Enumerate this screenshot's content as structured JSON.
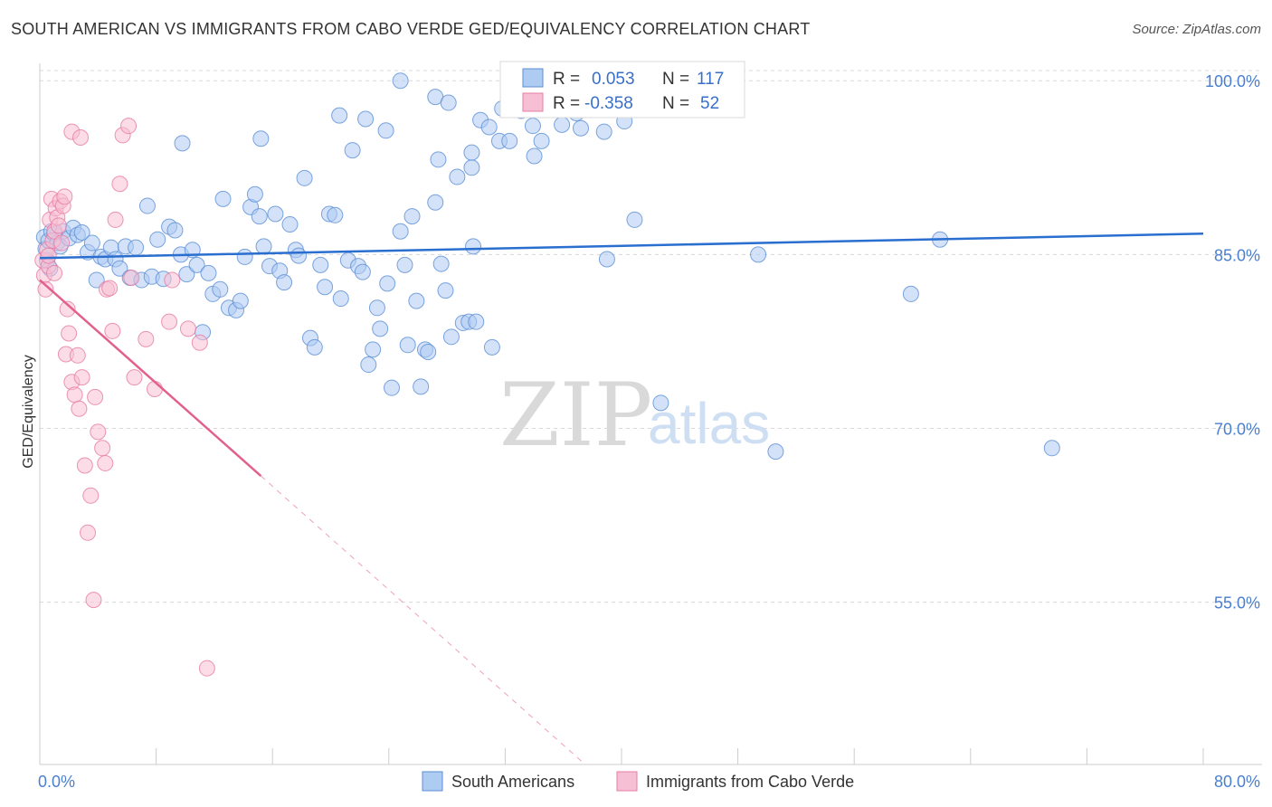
{
  "title": "SOUTH AMERICAN VS IMMIGRANTS FROM CABO VERDE GED/EQUIVALENCY CORRELATION CHART",
  "source": "Source: ZipAtlas.com",
  "colors": {
    "blue_fill": "#aecbf2",
    "blue_stroke": "#5b8fd6",
    "blue_line": "#2a6fd0",
    "pink_fill": "#f7bfd3",
    "pink_stroke": "#e77ca3",
    "pink_line": "#e2608e",
    "grid": "#d8d8d8",
    "tick_text": "#4a7fd0"
  },
  "stats_box": {
    "rows": [
      {
        "r_label": "R =",
        "r_value": "0.053",
        "n_label": "N =",
        "n_value": "117"
      },
      {
        "r_label": "R =",
        "r_value": "-0.358",
        "n_label": "N =",
        "n_value": "52"
      }
    ]
  },
  "legend": {
    "items": [
      "South Americans",
      "Immigrants from Cabo Verde"
    ]
  },
  "watermark": {
    "zip": "ZIP",
    "atlas": "atlas"
  },
  "chart_data": {
    "type": "scatter",
    "title": "SOUTH AMERICAN VS IMMIGRANTS FROM CABO VERDE GED/EQUIVALENCY CORRELATION CHART",
    "xlabel": "",
    "ylabel": "GED/Equivalency",
    "xlim": [
      0,
      80
    ],
    "ylim": [
      41,
      101.5
    ],
    "x_tick_labels": [
      "0.0%",
      "80.0%"
    ],
    "y_ticks": [
      {
        "value": 100,
        "label": "100.0%"
      },
      {
        "value": 85,
        "label": "85.0%"
      },
      {
        "value": 70,
        "label": "70.0%"
      },
      {
        "value": 55,
        "label": "55.0%"
      }
    ],
    "grid": "horizontal dashed",
    "legend_position": "bottom-center",
    "series": [
      {
        "name": "South Americans",
        "color": "#aecbf2",
        "trend": {
          "x0": 0,
          "y0": 84.7,
          "x1": 80,
          "y1": 86.8
        },
        "points": [
          [
            0.3,
            86.5
          ],
          [
            0.4,
            85.5
          ],
          [
            0.5,
            84.5
          ],
          [
            0.6,
            86.2
          ],
          [
            0.7,
            83.8
          ],
          [
            0.8,
            87.0
          ],
          [
            1.0,
            86.8
          ],
          [
            1.2,
            86.0
          ],
          [
            1.4,
            85.7
          ],
          [
            1.6,
            87.0
          ],
          [
            2.0,
            86.4
          ],
          [
            2.3,
            87.3
          ],
          [
            2.6,
            86.7
          ],
          [
            2.9,
            86.9
          ],
          [
            3.3,
            85.2
          ],
          [
            3.6,
            86.0
          ],
          [
            3.9,
            82.8
          ],
          [
            4.2,
            84.8
          ],
          [
            4.5,
            84.6
          ],
          [
            4.9,
            85.6
          ],
          [
            5.2,
            84.6
          ],
          [
            5.5,
            83.8
          ],
          [
            5.9,
            85.7
          ],
          [
            6.2,
            83.0
          ],
          [
            6.6,
            85.6
          ],
          [
            7.0,
            82.8
          ],
          [
            7.4,
            89.2
          ],
          [
            7.7,
            83.1
          ],
          [
            8.1,
            86.3
          ],
          [
            8.5,
            82.9
          ],
          [
            8.9,
            87.4
          ],
          [
            9.3,
            87.1
          ],
          [
            9.7,
            85.0
          ],
          [
            10.1,
            83.3
          ],
          [
            10.5,
            85.4
          ],
          [
            10.8,
            84.1
          ],
          [
            11.2,
            78.3
          ],
          [
            11.6,
            83.4
          ],
          [
            11.9,
            81.6
          ],
          [
            12.4,
            82.0
          ],
          [
            12.6,
            89.8
          ],
          [
            13.0,
            80.4
          ],
          [
            13.5,
            80.2
          ],
          [
            13.8,
            81.0
          ],
          [
            14.1,
            84.8
          ],
          [
            14.5,
            89.1
          ],
          [
            14.8,
            90.2
          ],
          [
            15.1,
            88.3
          ],
          [
            15.4,
            85.7
          ],
          [
            15.8,
            84.0
          ],
          [
            16.2,
            88.5
          ],
          [
            16.5,
            83.6
          ],
          [
            16.8,
            82.6
          ],
          [
            17.2,
            87.6
          ],
          [
            17.6,
            85.4
          ],
          [
            17.8,
            84.9
          ],
          [
            18.2,
            91.6
          ],
          [
            18.6,
            77.8
          ],
          [
            18.9,
            77.0
          ],
          [
            19.3,
            84.1
          ],
          [
            19.6,
            82.2
          ],
          [
            19.9,
            88.5
          ],
          [
            20.3,
            88.4
          ],
          [
            20.7,
            81.2
          ],
          [
            21.2,
            84.5
          ],
          [
            21.5,
            94.0
          ],
          [
            21.9,
            84.0
          ],
          [
            22.2,
            83.5
          ],
          [
            22.6,
            75.5
          ],
          [
            22.9,
            76.8
          ],
          [
            23.2,
            80.4
          ],
          [
            23.4,
            78.6
          ],
          [
            23.9,
            82.5
          ],
          [
            24.2,
            73.5
          ],
          [
            24.8,
            87.0
          ],
          [
            25.1,
            84.1
          ],
          [
            25.3,
            77.2
          ],
          [
            25.6,
            88.3
          ],
          [
            25.9,
            81.0
          ],
          [
            26.2,
            73.6
          ],
          [
            26.5,
            76.8
          ],
          [
            26.7,
            76.6
          ],
          [
            27.2,
            89.5
          ],
          [
            27.4,
            93.2
          ],
          [
            27.6,
            84.2
          ],
          [
            27.9,
            81.9
          ],
          [
            28.3,
            77.9
          ],
          [
            28.7,
            91.7
          ],
          [
            29.1,
            79.1
          ],
          [
            29.5,
            79.2
          ],
          [
            29.7,
            92.5
          ],
          [
            29.7,
            93.8
          ],
          [
            29.8,
            85.7
          ],
          [
            30.0,
            79.2
          ],
          [
            30.3,
            96.6
          ],
          [
            30.9,
            96.0
          ],
          [
            31.1,
            77.0
          ],
          [
            31.6,
            94.8
          ],
          [
            32.3,
            94.8
          ],
          [
            33.1,
            97.4
          ],
          [
            33.9,
            96.1
          ],
          [
            34.0,
            93.5
          ],
          [
            34.5,
            94.8
          ],
          [
            35.1,
            98.2
          ],
          [
            35.9,
            96.2
          ],
          [
            37.2,
            95.9
          ],
          [
            38.8,
            95.6
          ],
          [
            39.0,
            84.6
          ],
          [
            40.2,
            96.5
          ],
          [
            40.9,
            88.0
          ],
          [
            42.7,
            72.2
          ],
          [
            49.4,
            85.0
          ],
          [
            50.6,
            68.0
          ],
          [
            59.9,
            81.6
          ],
          [
            61.9,
            86.3
          ],
          [
            69.6,
            68.3
          ],
          [
            24.8,
            100.0
          ],
          [
            27.2,
            98.6
          ],
          [
            28.1,
            98.1
          ],
          [
            31.8,
            97.6
          ],
          [
            36.9,
            97.2
          ],
          [
            38.2,
            97.9
          ],
          [
            20.6,
            97.0
          ],
          [
            22.4,
            96.7
          ],
          [
            23.8,
            95.7
          ],
          [
            15.2,
            95.0
          ],
          [
            9.8,
            94.6
          ]
        ]
      },
      {
        "name": "Immigrants from Cabo Verde",
        "color": "#f7bfd3",
        "trend": {
          "x0": 0,
          "y0": 82.8,
          "x1": 15.2,
          "y1": 65.9
        },
        "trend_dashed": {
          "x0": 15.2,
          "y0": 65.9,
          "x1": 37.5,
          "y1": 41.0
        },
        "points": [
          [
            0.2,
            84.5
          ],
          [
            0.3,
            83.2
          ],
          [
            0.4,
            82.0
          ],
          [
            0.5,
            85.4
          ],
          [
            0.6,
            84.0
          ],
          [
            0.7,
            88.0
          ],
          [
            0.8,
            89.8
          ],
          [
            0.9,
            86.2
          ],
          [
            1.0,
            87.0
          ],
          [
            1.1,
            89.0
          ],
          [
            1.2,
            88.2
          ],
          [
            1.3,
            87.5
          ],
          [
            1.4,
            89.6
          ],
          [
            1.5,
            86.0
          ],
          [
            1.6,
            89.2
          ],
          [
            1.7,
            90.0
          ],
          [
            1.8,
            76.4
          ],
          [
            1.9,
            80.3
          ],
          [
            2.0,
            78.2
          ],
          [
            2.2,
            74.0
          ],
          [
            2.4,
            72.9
          ],
          [
            2.6,
            76.3
          ],
          [
            2.7,
            71.7
          ],
          [
            2.9,
            74.4
          ],
          [
            3.1,
            66.8
          ],
          [
            3.3,
            61.0
          ],
          [
            3.5,
            64.2
          ],
          [
            3.7,
            55.2
          ],
          [
            3.8,
            72.7
          ],
          [
            4.0,
            69.7
          ],
          [
            4.3,
            68.3
          ],
          [
            4.5,
            67.0
          ],
          [
            4.6,
            82.0
          ],
          [
            4.8,
            82.1
          ],
          [
            5.0,
            78.4
          ],
          [
            5.2,
            88.0
          ],
          [
            5.5,
            91.1
          ],
          [
            5.7,
            95.3
          ],
          [
            6.1,
            96.1
          ],
          [
            6.3,
            83.0
          ],
          [
            6.5,
            74.4
          ],
          [
            7.3,
            77.7
          ],
          [
            7.9,
            73.4
          ],
          [
            8.9,
            79.2
          ],
          [
            9.1,
            82.8
          ],
          [
            10.2,
            78.6
          ],
          [
            11.0,
            77.4
          ],
          [
            11.5,
            49.3
          ],
          [
            2.2,
            95.6
          ],
          [
            2.8,
            95.1
          ],
          [
            0.6,
            84.9
          ],
          [
            1.0,
            83.4
          ]
        ]
      }
    ]
  }
}
